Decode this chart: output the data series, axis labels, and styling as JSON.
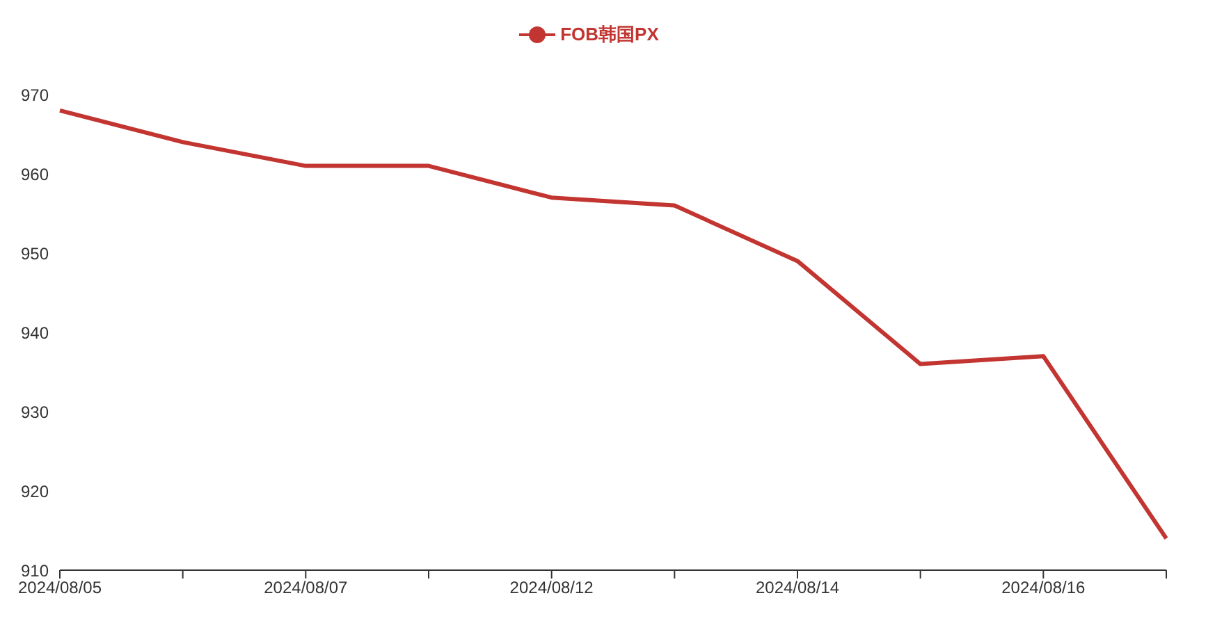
{
  "chart_data": {
    "type": "line",
    "categories": [
      "2024/08/05",
      null,
      "2024/08/07",
      null,
      "2024/08/12",
      null,
      "2024/08/14",
      null,
      "2024/08/16",
      null
    ],
    "series": [
      {
        "name": "FOB韩国PX",
        "color": "#c23531",
        "values": [
          968,
          964,
          961,
          961,
          957,
          956,
          949,
          936,
          937,
          914
        ]
      }
    ],
    "ylim": [
      910,
      970
    ],
    "yticks": [
      910,
      920,
      930,
      940,
      950,
      960,
      970
    ],
    "grid": false,
    "legend": "top",
    "marker": "none",
    "line_style": "solid"
  }
}
